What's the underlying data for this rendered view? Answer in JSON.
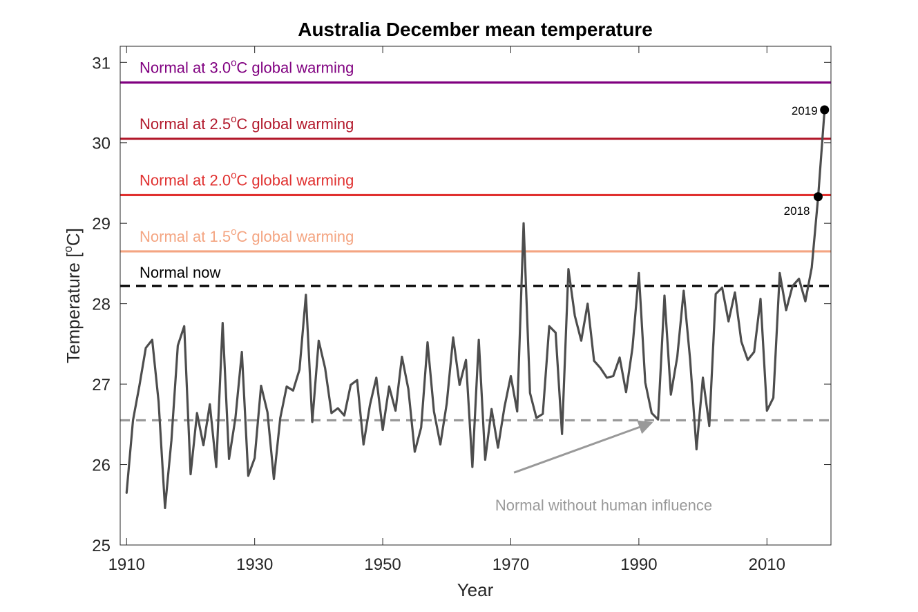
{
  "chart_data": {
    "type": "line",
    "title": "Australia December mean temperature",
    "xlabel": "Year",
    "ylabel_main": "Temperature [",
    "ylabel_sup": "o",
    "ylabel_end": "C]",
    "xlim": [
      1909,
      2020
    ],
    "ylim": [
      25,
      31.2
    ],
    "xticks": [
      1910,
      1930,
      1950,
      1970,
      1990,
      2010
    ],
    "yticks": [
      25,
      26,
      27,
      28,
      29,
      30,
      31
    ],
    "grid": false,
    "series": [
      {
        "name": "Australia December mean temperature",
        "color": "#4d4d4d",
        "x": [
          1910,
          1911,
          1912,
          1913,
          1914,
          1915,
          1916,
          1917,
          1918,
          1919,
          1920,
          1921,
          1922,
          1923,
          1924,
          1925,
          1926,
          1927,
          1928,
          1929,
          1930,
          1931,
          1932,
          1933,
          1934,
          1935,
          1936,
          1937,
          1938,
          1939,
          1940,
          1941,
          1942,
          1943,
          1944,
          1945,
          1946,
          1947,
          1948,
          1949,
          1950,
          1951,
          1952,
          1953,
          1954,
          1955,
          1956,
          1957,
          1958,
          1959,
          1960,
          1961,
          1962,
          1963,
          1964,
          1965,
          1966,
          1967,
          1968,
          1969,
          1970,
          1971,
          1972,
          1973,
          1974,
          1975,
          1976,
          1977,
          1978,
          1979,
          1980,
          1981,
          1982,
          1983,
          1984,
          1985,
          1986,
          1987,
          1988,
          1989,
          1990,
          1991,
          1992,
          1993,
          1994,
          1995,
          1996,
          1997,
          1998,
          1999,
          2000,
          2001,
          2002,
          2003,
          2004,
          2005,
          2006,
          2007,
          2008,
          2009,
          2010,
          2011,
          2012,
          2013,
          2014,
          2015,
          2016,
          2017,
          2018,
          2019
        ],
        "y": [
          25.65,
          26.55,
          26.98,
          27.45,
          27.55,
          26.78,
          25.46,
          26.3,
          27.48,
          27.72,
          25.88,
          26.64,
          26.24,
          26.75,
          25.97,
          27.76,
          26.07,
          26.58,
          27.4,
          25.86,
          26.08,
          26.98,
          26.65,
          25.82,
          26.58,
          26.97,
          26.92,
          27.18,
          28.11,
          26.53,
          27.54,
          27.2,
          26.64,
          26.7,
          26.61,
          26.99,
          27.05,
          26.25,
          26.74,
          27.08,
          26.43,
          26.97,
          26.67,
          27.34,
          26.94,
          26.16,
          26.46,
          27.52,
          26.66,
          26.25,
          26.76,
          27.58,
          26.99,
          27.3,
          25.97,
          27.55,
          26.06,
          26.69,
          26.21,
          26.71,
          27.1,
          26.66,
          29.0,
          26.89,
          26.58,
          26.63,
          27.72,
          27.64,
          26.38,
          28.43,
          27.85,
          27.54,
          28.0,
          27.29,
          27.2,
          27.08,
          27.1,
          27.33,
          26.9,
          27.45,
          28.38,
          27.02,
          26.64,
          26.56,
          28.1,
          26.87,
          27.34,
          28.16,
          27.31,
          26.19,
          27.08,
          26.48,
          28.12,
          28.2,
          27.78,
          28.14,
          27.53,
          27.3,
          27.4,
          28.06,
          26.67,
          26.83,
          28.38,
          27.92,
          28.22,
          28.31,
          28.03,
          28.45,
          29.33,
          30.41
        ]
      }
    ],
    "reference_lines": [
      {
        "label_pre": "Normal at 3.0",
        "label_sup": "o",
        "label_post": "C global warming",
        "value": 30.75,
        "color": "#800080",
        "style": "solid"
      },
      {
        "label_pre": "Normal at 2.5",
        "label_sup": "o",
        "label_post": "C global warming",
        "value": 30.05,
        "color": "#b2182b",
        "style": "solid"
      },
      {
        "label_pre": "Normal at 2.0",
        "label_sup": "o",
        "label_post": "C global warming",
        "value": 29.35,
        "color": "#e0302f",
        "style": "solid"
      },
      {
        "label_pre": "Normal at 1.5",
        "label_sup": "o",
        "label_post": "C global warming",
        "value": 28.65,
        "color": "#f4a582",
        "style": "solid"
      },
      {
        "label_pre": "Normal now",
        "label_sup": "",
        "label_post": "",
        "value": 28.22,
        "color": "#000000",
        "style": "dashed"
      },
      {
        "label_pre": "",
        "label_sup": "",
        "label_post": "",
        "value": 26.55,
        "color": "#999999",
        "style": "dashed"
      }
    ],
    "annotations": [
      {
        "text": "2019",
        "x": 2019,
        "y": 30.41
      },
      {
        "text": "2018",
        "x": 2018,
        "y": 29.33
      }
    ],
    "arrow_annotation": {
      "text": "Normal without human influence",
      "color": "#999999",
      "from": {
        "x": 1970.5,
        "y": 25.9
      },
      "to": {
        "x": 1992,
        "y": 26.52
      }
    }
  }
}
